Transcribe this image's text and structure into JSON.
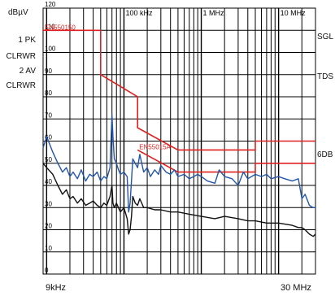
{
  "left_panel": {
    "unit": "dBµV",
    "trace1_name": "1 PK",
    "trace1_mode": "CLRWR",
    "trace2_name": "2 AV",
    "trace2_mode": "CLRWR"
  },
  "right_panel": {
    "label_sgl": "SGL",
    "label_tds": "TDS",
    "label_6db": "6DB"
  },
  "bottom_axis": {
    "start_label": "9kHz",
    "stop_label": "30 MHz"
  },
  "colors": {
    "grid": "#000000",
    "limit": "#e02020",
    "peak": "#2255aa",
    "average": "#111111"
  },
  "chart_data": {
    "type": "line",
    "x_scale": "log",
    "x_unit": "Hz",
    "xlim": [
      9000,
      30000000
    ],
    "ylim": [
      0,
      120
    ],
    "y_ticks": [
      0,
      10,
      20,
      30,
      40,
      50,
      60,
      70,
      80,
      90,
      100,
      110,
      120
    ],
    "x_tick_labels": [
      {
        "label": "100 kHz",
        "x": 100000
      },
      {
        "label": "1 MHz",
        "x": 1000000
      },
      {
        "label": "10 MHz",
        "x": 10000000
      }
    ],
    "limit_lines": [
      {
        "name": "EN55015QP",
        "label": "EN550150",
        "x": [
          9000,
          50000,
          50000,
          150000,
          150000,
          500000,
          500000,
          5000000,
          5000000,
          30000000
        ],
        "y": [
          110,
          110,
          90,
          80,
          66,
          56,
          56,
          56,
          60,
          60
        ]
      },
      {
        "name": "EN55015AV",
        "label": "EN55015A",
        "x": [
          150000,
          500000,
          500000,
          5000000,
          5000000,
          30000000
        ],
        "y": [
          56,
          46,
          46,
          46,
          50,
          50
        ]
      }
    ],
    "series": [
      {
        "name": "1 PK",
        "x": [
          9000,
          10000,
          12000,
          14000,
          16000,
          18000,
          20000,
          22000,
          25000,
          28000,
          32000,
          36000,
          40000,
          45000,
          50000,
          55000,
          60000,
          66000,
          70000,
          72000,
          75000,
          80000,
          85000,
          90000,
          100000,
          110000,
          115000,
          120000,
          125000,
          130000,
          140000,
          150000,
          160000,
          180000,
          200000,
          220000,
          250000,
          280000,
          300000,
          350000,
          400000,
          450000,
          500000,
          600000,
          700000,
          800000,
          900000,
          1000000,
          1200000,
          1500000,
          1700000,
          2000000,
          2500000,
          3000000,
          3500000,
          4000000,
          5000000,
          6000000,
          7000000,
          8000000,
          10000000,
          12000000,
          15000000,
          18000000,
          20000000,
          22000000,
          25000000,
          28000000,
          30000000
        ],
        "y": [
          57,
          62,
          55,
          50,
          46,
          48,
          44,
          46,
          43,
          47,
          42,
          45,
          44,
          46,
          42,
          44,
          43,
          48,
          72,
          62,
          52,
          50,
          47,
          45,
          46,
          44,
          28,
          32,
          42,
          52,
          50,
          48,
          54,
          46,
          48,
          44,
          47,
          45,
          49,
          46,
          45,
          47,
          44,
          45,
          43,
          44,
          45,
          44,
          42,
          41,
          47,
          44,
          43,
          40,
          46,
          43,
          45,
          44,
          45,
          43,
          44,
          43,
          42,
          43,
          34,
          36,
          31,
          30,
          30
        ]
      },
      {
        "name": "2 AV",
        "x": [
          9000,
          10000,
          12000,
          14000,
          16000,
          18000,
          20000,
          22000,
          25000,
          28000,
          32000,
          36000,
          40000,
          45000,
          50000,
          55000,
          60000,
          66000,
          70000,
          72000,
          75000,
          80000,
          90000,
          100000,
          110000,
          115000,
          120000,
          125000,
          130000,
          140000,
          150000,
          160000,
          180000,
          200000,
          250000,
          300000,
          400000,
          500000,
          700000,
          1000000,
          1500000,
          2000000,
          3000000,
          4000000,
          5000000,
          7000000,
          10000000,
          15000000,
          18000000,
          20000000,
          22000000,
          25000000,
          28000000,
          30000000
        ],
        "y": [
          50,
          48,
          45,
          40,
          36,
          38,
          34,
          35,
          32,
          34,
          31,
          32,
          33,
          31,
          30,
          32,
          31,
          35,
          40,
          32,
          30,
          32,
          28,
          30,
          25,
          18,
          20,
          26,
          35,
          32,
          31,
          34,
          30,
          30,
          29,
          29,
          28,
          28,
          27,
          26,
          25,
          26,
          25,
          24,
          24,
          23,
          23,
          22,
          21,
          21,
          20,
          18,
          17,
          18
        ]
      }
    ]
  }
}
